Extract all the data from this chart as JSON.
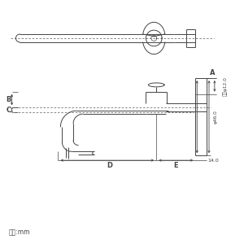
{
  "bg_color": "#ffffff",
  "lc": "#444444",
  "lw": 0.7,
  "thin": 0.5,
  "fig_w": 3.0,
  "fig_h": 3.0,
  "unit_text": "単位:mm",
  "label_A": "A",
  "label_B": "B",
  "label_C": "C",
  "label_D": "D",
  "label_E": "E",
  "dim_inner": "内径φ12.0",
  "dim_phi46": "φ46.0",
  "dim_14": "14.0"
}
